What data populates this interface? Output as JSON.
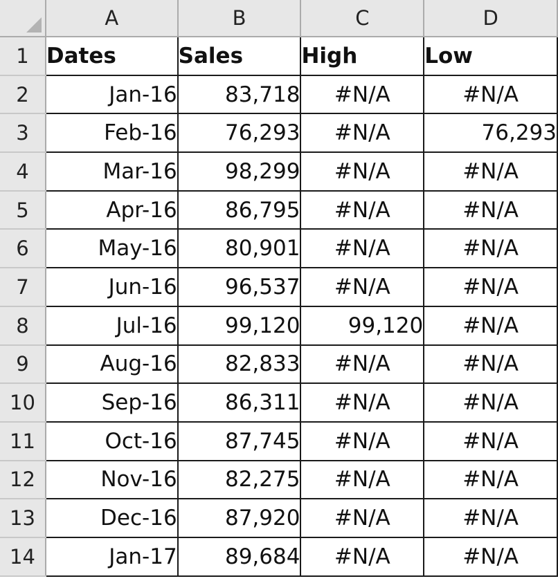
{
  "sheet": {
    "column_headers": [
      "A",
      "B",
      "C",
      "D"
    ],
    "header_cells": [
      "Dates",
      "Sales",
      "High",
      "Low"
    ],
    "rows": [
      {
        "row": "2",
        "date": "Jan-16",
        "sales": "83,718",
        "high": "#N/A",
        "low": "#N/A"
      },
      {
        "row": "3",
        "date": "Feb-16",
        "sales": "76,293",
        "high": "#N/A",
        "low": "76,293"
      },
      {
        "row": "4",
        "date": "Mar-16",
        "sales": "98,299",
        "high": "#N/A",
        "low": "#N/A"
      },
      {
        "row": "5",
        "date": "Apr-16",
        "sales": "86,795",
        "high": "#N/A",
        "low": "#N/A"
      },
      {
        "row": "6",
        "date": "May-16",
        "sales": "80,901",
        "high": "#N/A",
        "low": "#N/A"
      },
      {
        "row": "7",
        "date": "Jun-16",
        "sales": "96,537",
        "high": "#N/A",
        "low": "#N/A"
      },
      {
        "row": "8",
        "date": "Jul-16",
        "sales": "99,120",
        "high": "99,120",
        "low": "#N/A"
      },
      {
        "row": "9",
        "date": "Aug-16",
        "sales": "82,833",
        "high": "#N/A",
        "low": "#N/A"
      },
      {
        "row": "10",
        "date": "Sep-16",
        "sales": "86,311",
        "high": "#N/A",
        "low": "#N/A"
      },
      {
        "row": "11",
        "date": "Oct-16",
        "sales": "87,745",
        "high": "#N/A",
        "low": "#N/A"
      },
      {
        "row": "12",
        "date": "Nov-16",
        "sales": "82,275",
        "high": "#N/A",
        "low": "#N/A"
      },
      {
        "row": "13",
        "date": "Dec-16",
        "sales": "87,920",
        "high": "#N/A",
        "low": "#N/A"
      },
      {
        "row": "14",
        "date": "Jan-17",
        "sales": "89,684",
        "high": "#N/A",
        "low": "#N/A"
      }
    ],
    "header_row_number": "1",
    "colors": {
      "header_bg": "#e7e7e7",
      "grid_border": "#1a1a1a"
    }
  }
}
